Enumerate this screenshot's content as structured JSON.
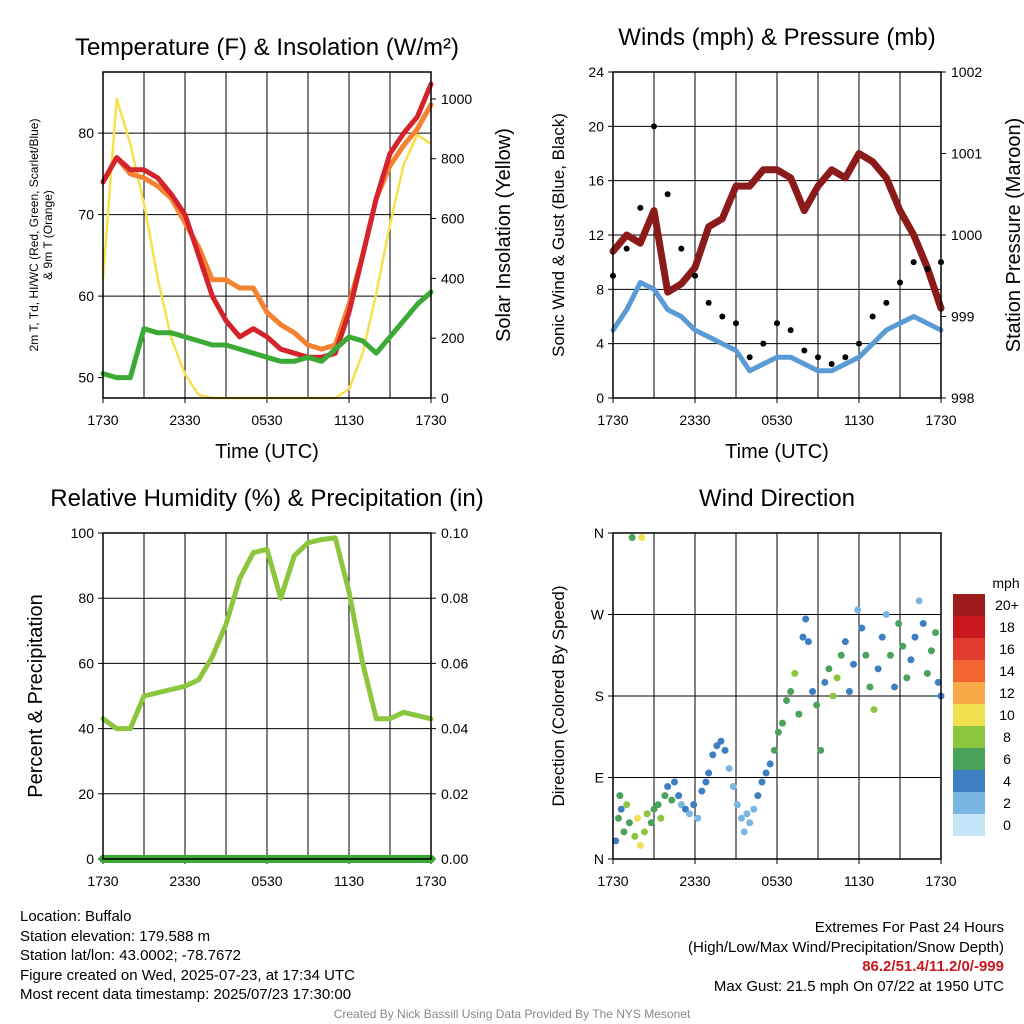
{
  "chart_data": [
    {
      "type": "line",
      "title": "Temperature (F) & Insolation (W/m²)",
      "xlabel": "Time (UTC)",
      "ylabel_left_line1": "2m T, Td, HI/WC (Red, Green, Scarlet/Blue)",
      "ylabel_left_line2": "& 9m T (Orange)",
      "ylabel_right": "Solar Insolation (Yellow)",
      "x_ticks": [
        "1730",
        "2330",
        "0530",
        "1130",
        "1730"
      ],
      "y_ticks": [
        "50",
        "60",
        "70",
        "80"
      ],
      "y2_ticks": [
        "0",
        "200",
        "400",
        "600",
        "800",
        "1000"
      ],
      "ylim": [
        47.5,
        87.5
      ],
      "y2lim": [
        0,
        1090
      ],
      "x_hours": [
        0,
        1,
        2,
        3,
        4,
        5,
        6,
        7,
        8,
        9,
        10,
        11,
        12,
        13,
        14,
        15,
        16,
        17,
        18,
        19,
        20,
        21,
        22,
        23,
        24
      ],
      "series": [
        {
          "color": "#d4232a",
          "axis": "left",
          "values": [
            74,
            77,
            75.5,
            75.5,
            74.5,
            72.5,
            70,
            65,
            60,
            57,
            55,
            56,
            55,
            53.5,
            53,
            52.5,
            52.5,
            53,
            58,
            65,
            72,
            77.5,
            80,
            82,
            86
          ]
        },
        {
          "color": "#f58231",
          "axis": "left",
          "values": [
            74,
            77,
            75,
            74.5,
            73.5,
            72,
            69,
            66,
            62,
            62,
            61,
            61,
            58,
            56.5,
            55.5,
            54,
            53.5,
            54,
            59,
            65,
            72,
            76,
            78.5,
            80.5,
            83.5
          ]
        },
        {
          "color": "#3aaa35",
          "axis": "left",
          "values": [
            50.5,
            50,
            50,
            56,
            55.5,
            55.5,
            55,
            54.5,
            54,
            54,
            53.5,
            53,
            52.5,
            52,
            52,
            52.5,
            52,
            53.5,
            55,
            54.5,
            53,
            55,
            57,
            59,
            60.5
          ]
        },
        {
          "color": "#f7e04b",
          "axis": "right",
          "values": [
            400,
            1000,
            850,
            650,
            400,
            200,
            80,
            10,
            0,
            0,
            0,
            0,
            0,
            0,
            0,
            0,
            0,
            0,
            30,
            150,
            350,
            580,
            780,
            880,
            850
          ]
        }
      ]
    },
    {
      "type": "line",
      "title": "Winds (mph) & Pressure (mb)",
      "xlabel": "Time (UTC)",
      "ylabel": "Sonic Wind & Gust (Blue, Black)",
      "ylabel_right": "Station Pressure (Maroon)",
      "x_ticks": [
        "1730",
        "2330",
        "0530",
        "1130",
        "1730"
      ],
      "y_ticks": [
        "0",
        "4",
        "8",
        "12",
        "16",
        "20",
        "24"
      ],
      "y2_ticks": [
        "998",
        "999",
        "1000",
        "1001",
        "1002"
      ],
      "ylim": [
        0,
        24
      ],
      "y2lim": [
        998,
        1002
      ],
      "x_hours": [
        0,
        1,
        2,
        3,
        4,
        5,
        6,
        7,
        8,
        9,
        10,
        11,
        12,
        13,
        14,
        15,
        16,
        17,
        18,
        19,
        20,
        21,
        22,
        23,
        24
      ],
      "series": [
        {
          "color": "#8b1a1a",
          "axis": "right",
          "marker": "line",
          "values": [
            999.8,
            1000,
            999.9,
            1000.3,
            999.3,
            999.4,
            999.6,
            1000.1,
            1000.2,
            1000.6,
            1000.6,
            1000.8,
            1000.8,
            1000.7,
            1000.3,
            1000.6,
            1000.8,
            1000.7,
            1001,
            1000.9,
            1000.7,
            1000.3,
            1000,
            999.6,
            999.1
          ]
        },
        {
          "color": "#5b9bd5",
          "axis": "left",
          "marker": "line",
          "values": [
            5,
            6.5,
            8.5,
            8,
            6.5,
            6,
            5,
            4.5,
            4,
            3.5,
            2,
            2.5,
            3,
            3,
            2.5,
            2,
            2,
            2.5,
            3,
            4,
            5,
            5.5,
            6,
            5.5,
            5
          ]
        },
        {
          "color": "#000000",
          "axis": "left",
          "marker": "dot",
          "values": [
            9,
            11,
            14,
            20,
            15,
            11,
            9,
            7,
            6,
            5.5,
            3,
            4,
            5.5,
            5,
            3.5,
            3,
            2.5,
            3,
            4,
            6,
            7,
            8.5,
            10,
            9.5,
            10
          ]
        }
      ]
    },
    {
      "type": "line",
      "title": "Relative Humidity (%) & Precipitation (in)",
      "ylabel": "Percent & Precipitation",
      "x_ticks": [
        "1730",
        "2330",
        "0530",
        "1130",
        "1730"
      ],
      "y_ticks": [
        "0",
        "20",
        "40",
        "60",
        "80",
        "100"
      ],
      "y2_ticks": [
        "0.00",
        "0.02",
        "0.04",
        "0.06",
        "0.08",
        "0.10"
      ],
      "ylim": [
        0,
        100
      ],
      "y2lim": [
        0,
        0.1
      ],
      "x_hours": [
        0,
        1,
        2,
        3,
        4,
        5,
        6,
        7,
        8,
        9,
        10,
        11,
        12,
        13,
        14,
        15,
        16,
        17,
        18,
        19,
        20,
        21,
        22,
        23,
        24
      ],
      "series": [
        {
          "color": "#8cc63f",
          "axis": "left",
          "values": [
            43,
            40,
            40,
            50,
            51,
            52,
            53,
            55,
            62,
            72,
            86,
            94,
            95,
            80,
            93,
            97,
            98,
            98.5,
            82,
            60,
            43,
            43,
            45,
            44,
            43
          ]
        },
        {
          "color": "#3aaa35",
          "axis": "right",
          "values": [
            0,
            0,
            0,
            0,
            0,
            0,
            0,
            0,
            0,
            0,
            0,
            0,
            0,
            0,
            0,
            0,
            0,
            0,
            0,
            0,
            0,
            0,
            0,
            0,
            0
          ]
        }
      ]
    },
    {
      "type": "scatter",
      "title": "Wind Direction",
      "ylabel": "Direction (Colored By Speed)",
      "x_ticks": [
        "1730",
        "2330",
        "0530",
        "1130",
        "1730"
      ],
      "y_ticks": [
        "N",
        "E",
        "S",
        "W",
        "N"
      ],
      "ylim": [
        0,
        360
      ],
      "legend_title": "mph",
      "legend_labels": [
        "20+",
        "18",
        "16",
        "14",
        "12",
        "10",
        "8",
        "6",
        "4",
        "2",
        "0"
      ],
      "legend_colors": [
        "#9e1b1b",
        "#c8181e",
        "#e03c2d",
        "#f26530",
        "#f9a847",
        "#f0e050",
        "#8cc63f",
        "#4aa35a",
        "#3d7fc0",
        "#7ab6e2",
        "#c4e4f7"
      ],
      "points": [
        [
          0.2,
          20,
          4
        ],
        [
          0.4,
          45,
          6
        ],
        [
          0.5,
          70,
          5
        ],
        [
          0.6,
          55,
          3
        ],
        [
          0.8,
          30,
          6
        ],
        [
          1.0,
          60,
          7
        ],
        [
          1.2,
          40,
          5
        ],
        [
          1.4,
          355,
          6
        ],
        [
          1.6,
          25,
          8
        ],
        [
          1.8,
          45,
          9
        ],
        [
          2.0,
          15,
          10
        ],
        [
          2.1,
          355,
          10
        ],
        [
          2.3,
          30,
          8
        ],
        [
          2.5,
          50,
          7
        ],
        [
          2.8,
          40,
          6
        ],
        [
          3.0,
          55,
          5
        ],
        [
          3.3,
          60,
          6
        ],
        [
          3.5,
          45,
          7
        ],
        [
          3.8,
          70,
          5
        ],
        [
          4.0,
          80,
          4
        ],
        [
          4.3,
          65,
          5
        ],
        [
          4.5,
          85,
          4
        ],
        [
          4.8,
          70,
          3
        ],
        [
          5.0,
          60,
          2
        ],
        [
          5.3,
          55,
          3
        ],
        [
          5.6,
          50,
          2
        ],
        [
          5.9,
          60,
          3
        ],
        [
          6.2,
          45,
          2
        ],
        [
          6.5,
          75,
          3
        ],
        [
          6.8,
          85,
          3
        ],
        [
          7.0,
          95,
          4
        ],
        [
          7.3,
          115,
          3
        ],
        [
          7.6,
          125,
          4
        ],
        [
          7.9,
          130,
          4
        ],
        [
          8.2,
          120,
          3
        ],
        [
          8.5,
          100,
          2
        ],
        [
          8.8,
          80,
          2
        ],
        [
          9.1,
          60,
          1
        ],
        [
          9.4,
          45,
          2
        ],
        [
          9.6,
          30,
          1
        ],
        [
          9.8,
          50,
          2
        ],
        [
          10.0,
          40,
          1
        ],
        [
          10.3,
          55,
          2
        ],
        [
          10.6,
          70,
          3
        ],
        [
          10.9,
          85,
          3
        ],
        [
          11.2,
          95,
          4
        ],
        [
          11.5,
          105,
          3
        ],
        [
          11.8,
          120,
          5
        ],
        [
          12.1,
          140,
          6
        ],
        [
          12.4,
          150,
          5
        ],
        [
          12.7,
          175,
          5
        ],
        [
          13.0,
          185,
          6
        ],
        [
          13.3,
          205,
          7
        ],
        [
          13.6,
          160,
          6
        ],
        [
          13.9,
          245,
          4
        ],
        [
          14.1,
          265,
          4
        ],
        [
          14.3,
          240,
          4
        ],
        [
          14.6,
          185,
          3
        ],
        [
          14.9,
          170,
          6
        ],
        [
          15.2,
          120,
          5
        ],
        [
          15.5,
          195,
          4
        ],
        [
          15.8,
          210,
          6
        ],
        [
          16.1,
          180,
          7
        ],
        [
          16.4,
          200,
          8
        ],
        [
          16.7,
          225,
          6
        ],
        [
          17.0,
          240,
          4
        ],
        [
          17.3,
          185,
          3
        ],
        [
          17.6,
          215,
          3
        ],
        [
          17.9,
          275,
          2
        ],
        [
          18.2,
          255,
          4
        ],
        [
          18.5,
          225,
          5
        ],
        [
          18.8,
          190,
          6
        ],
        [
          19.1,
          165,
          7
        ],
        [
          19.4,
          210,
          4
        ],
        [
          19.7,
          245,
          3
        ],
        [
          20.0,
          270,
          2
        ],
        [
          20.3,
          225,
          5
        ],
        [
          20.6,
          190,
          4
        ],
        [
          20.9,
          260,
          5
        ],
        [
          21.2,
          235,
          5
        ],
        [
          21.5,
          200,
          6
        ],
        [
          21.8,
          220,
          4
        ],
        [
          22.1,
          245,
          3
        ],
        [
          22.4,
          285,
          2
        ],
        [
          22.7,
          260,
          4
        ],
        [
          23.0,
          205,
          5
        ],
        [
          23.3,
          230,
          6
        ],
        [
          23.6,
          250,
          5
        ],
        [
          23.8,
          195,
          4
        ],
        [
          24.0,
          180,
          3
        ]
      ]
    }
  ],
  "info": {
    "location": "Location: Buffalo",
    "elevation": "Station elevation: 179.588 m",
    "latlon": "Station lat/lon: 43.0002; -78.7672",
    "created": "Figure created on Wed, 2025-07-23, at 17:34 UTC",
    "recent": "Most recent data timestamp: 2025/07/23 17:30:00"
  },
  "extremes": {
    "heading": "Extremes For Past 24 Hours",
    "subheading": "(High/Low/Max Wind/Precipitation/Snow Depth)",
    "values": "86.2/51.4/11.2/0/-999",
    "max_gust": "Max Gust: 21.5 mph On 07/22 at 1950 UTC"
  },
  "credit": "Created By Nick Bassill Using Data Provided By The NYS Mesonet"
}
